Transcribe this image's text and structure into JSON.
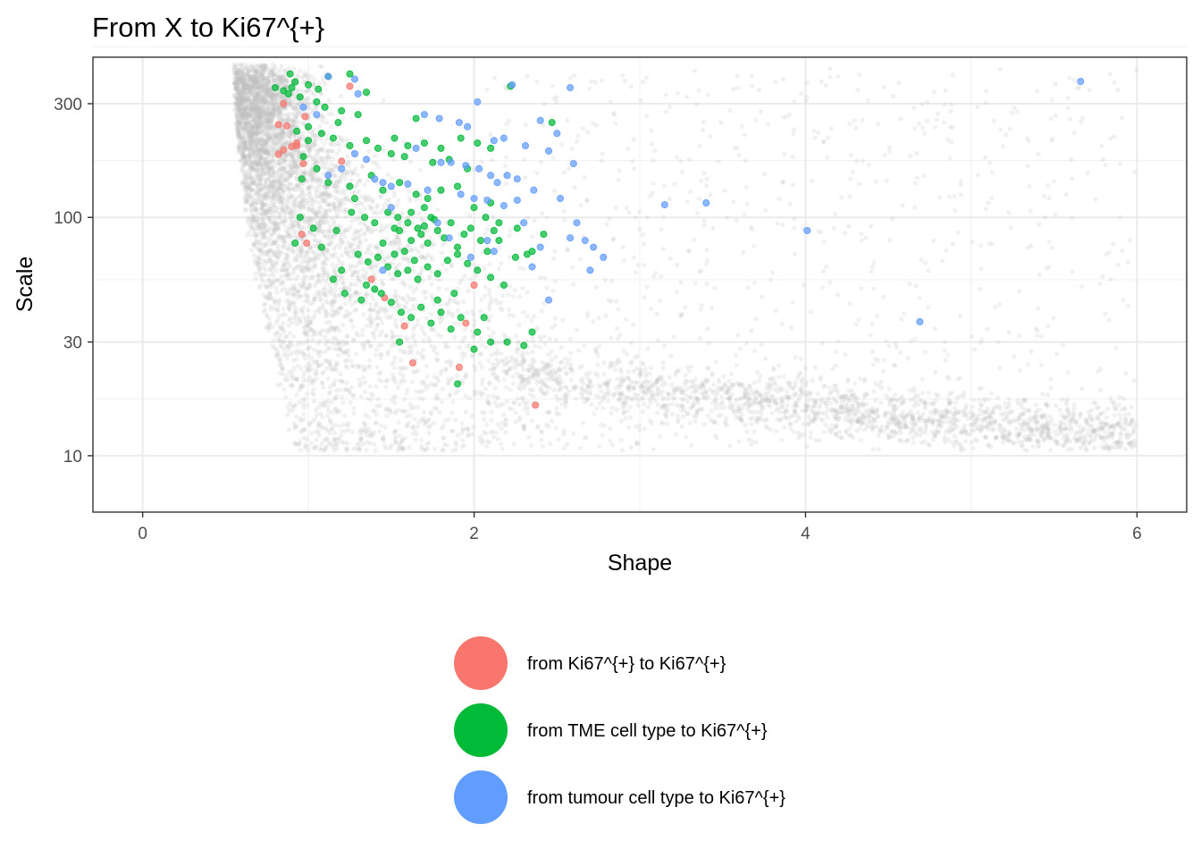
{
  "chart_data": {
    "type": "scatter",
    "title": "From X to  Ki67^{+}",
    "xlabel": "Shape",
    "ylabel": "Scale",
    "xlim": [
      -0.3,
      6.3
    ],
    "ylim": [
      5.8,
      470
    ],
    "yscale": "log",
    "x_ticks": [
      0,
      2,
      4,
      6
    ],
    "x_tick_labels": [
      "0",
      "2",
      "4",
      "6"
    ],
    "y_ticks": [
      10,
      30,
      100,
      300
    ],
    "y_tick_labels": [
      "10",
      "30",
      "100",
      "300"
    ],
    "grid": true,
    "legend_position": "bottom",
    "background_color": "#BEBEBE",
    "series": [
      {
        "name": "from Ki67^{+} to Ki67^{+}",
        "color": "#F8766D",
        "points": [
          [
            0.85,
            300
          ],
          [
            0.98,
            265
          ],
          [
            0.82,
            245
          ],
          [
            0.87,
            242
          ],
          [
            0.93,
            200
          ],
          [
            0.9,
            198
          ],
          [
            0.85,
            192
          ],
          [
            0.82,
            184
          ],
          [
            0.97,
            168
          ],
          [
            1.25,
            355
          ],
          [
            0.96,
            85
          ],
          [
            1.2,
            172
          ],
          [
            0.99,
            78
          ],
          [
            1.38,
            55
          ],
          [
            1.46,
            46
          ],
          [
            1.58,
            35
          ],
          [
            1.63,
            24.5
          ],
          [
            1.95,
            36
          ],
          [
            1.91,
            23.5
          ],
          [
            2.37,
            16.3
          ],
          [
            2.0,
            52
          ],
          [
            0.93,
            205
          ]
        ]
      },
      {
        "name": "from TME cell type to Ki67^{+}",
        "color": "#00BA38",
        "points": [
          [
            0.85,
            340
          ],
          [
            0.89,
            400
          ],
          [
            0.92,
            370
          ],
          [
            1.0,
            360
          ],
          [
            1.06,
            345
          ],
          [
            1.12,
            390
          ],
          [
            1.25,
            400
          ],
          [
            1.35,
            335
          ],
          [
            0.8,
            350
          ],
          [
            0.88,
            330
          ],
          [
            0.95,
            320
          ],
          [
            1.05,
            305
          ],
          [
            1.1,
            290
          ],
          [
            1.2,
            280
          ],
          [
            1.3,
            270
          ],
          [
            1.18,
            250
          ],
          [
            1.0,
            240
          ],
          [
            0.93,
            230
          ],
          [
            1.08,
            225
          ],
          [
            1.15,
            215
          ],
          [
            1.25,
            200
          ],
          [
            1.35,
            210
          ],
          [
            1.42,
            195
          ],
          [
            1.52,
            215
          ],
          [
            1.6,
            200
          ],
          [
            1.7,
            205
          ],
          [
            1.8,
            195
          ],
          [
            1.65,
            260
          ],
          [
            1.92,
            215
          ],
          [
            2.02,
            205
          ],
          [
            2.1,
            195
          ],
          [
            1.5,
            185
          ],
          [
            1.58,
            180
          ],
          [
            1.75,
            170
          ],
          [
            1.85,
            175
          ],
          [
            1.96,
            160
          ],
          [
            1.05,
            160
          ],
          [
            0.96,
            145
          ],
          [
            1.12,
            140
          ],
          [
            1.25,
            135
          ],
          [
            1.38,
            150
          ],
          [
            1.45,
            130
          ],
          [
            1.55,
            140
          ],
          [
            1.65,
            125
          ],
          [
            1.72,
            120
          ],
          [
            1.8,
            130
          ],
          [
            1.9,
            135
          ],
          [
            2.0,
            110
          ],
          [
            2.1,
            115
          ],
          [
            1.28,
            120
          ],
          [
            1.34,
            100
          ],
          [
            1.4,
            95
          ],
          [
            1.48,
            105
          ],
          [
            1.52,
            90
          ],
          [
            1.55,
            88
          ],
          [
            1.6,
            95
          ],
          [
            1.62,
            80
          ],
          [
            1.68,
            85
          ],
          [
            1.7,
            92
          ],
          [
            1.72,
            78
          ],
          [
            1.74,
            100
          ],
          [
            1.78,
            88
          ],
          [
            1.82,
            82
          ],
          [
            1.86,
            95
          ],
          [
            1.9,
            75
          ],
          [
            1.94,
            85
          ],
          [
            1.98,
            90
          ],
          [
            2.04,
            80
          ],
          [
            2.08,
            72
          ],
          [
            2.12,
            88
          ],
          [
            1.3,
            70
          ],
          [
            1.36,
            65
          ],
          [
            1.42,
            68
          ],
          [
            1.48,
            62
          ],
          [
            1.54,
            58
          ],
          [
            1.6,
            60
          ],
          [
            1.66,
            55
          ],
          [
            1.72,
            62
          ],
          [
            1.78,
            58
          ],
          [
            1.84,
            66
          ],
          [
            1.9,
            70
          ],
          [
            1.96,
            64
          ],
          [
            2.02,
            60
          ],
          [
            2.1,
            56
          ],
          [
            2.18,
            52
          ],
          [
            1.2,
            60
          ],
          [
            1.15,
            55
          ],
          [
            1.22,
            48
          ],
          [
            1.32,
            45
          ],
          [
            1.4,
            50
          ],
          [
            1.5,
            44
          ],
          [
            1.56,
            40
          ],
          [
            1.62,
            38
          ],
          [
            1.68,
            42
          ],
          [
            1.74,
            36
          ],
          [
            1.8,
            40
          ],
          [
            1.86,
            34
          ],
          [
            1.92,
            38
          ],
          [
            2.02,
            33
          ],
          [
            2.1,
            30
          ],
          [
            2.2,
            30
          ],
          [
            2.3,
            29
          ],
          [
            2.35,
            33
          ],
          [
            2.0,
            28
          ],
          [
            1.9,
            20
          ],
          [
            1.55,
            30
          ],
          [
            1.78,
            45
          ],
          [
            1.88,
            48
          ],
          [
            2.06,
            38
          ],
          [
            1.35,
            52
          ],
          [
            1.45,
            78
          ],
          [
            1.58,
            72
          ],
          [
            2.25,
            68
          ],
          [
            2.35,
            72
          ],
          [
            2.42,
            85
          ],
          [
            2.22,
            355
          ],
          [
            2.47,
            250
          ],
          [
            2.32,
            70
          ],
          [
            0.92,
            78
          ],
          [
            0.95,
            100
          ],
          [
            1.03,
            90
          ],
          [
            1.26,
            105
          ],
          [
            1.17,
            88
          ],
          [
            1.08,
            75
          ],
          [
            0.9,
            350
          ],
          [
            1.0,
            210
          ],
          [
            0.97,
            180
          ],
          [
            1.7,
            110
          ],
          [
            1.76,
            98
          ],
          [
            1.62,
            105
          ],
          [
            1.66,
            90
          ],
          [
            1.54,
            100
          ],
          [
            2.07,
            100
          ],
          [
            2.15,
            95
          ],
          [
            1.52,
            70
          ],
          [
            1.44,
            48
          ],
          [
            1.64,
            66
          ],
          [
            2.26,
            90
          ],
          [
            2.15,
            80
          ]
        ]
      },
      {
        "name": "from tumour cell type to Ki67^{+}",
        "color": "#619CFF",
        "points": [
          [
            1.12,
            390
          ],
          [
            1.28,
            380
          ],
          [
            1.3,
            330
          ],
          [
            0.97,
            290
          ],
          [
            1.05,
            270
          ],
          [
            2.02,
            305
          ],
          [
            2.58,
            350
          ],
          [
            2.23,
            360
          ],
          [
            2.4,
            255
          ],
          [
            2.5,
            225
          ],
          [
            1.7,
            270
          ],
          [
            1.79,
            260
          ],
          [
            1.91,
            250
          ],
          [
            1.96,
            240
          ],
          [
            2.12,
            210
          ],
          [
            2.18,
            215
          ],
          [
            2.31,
            200
          ],
          [
            2.45,
            190
          ],
          [
            2.6,
            168
          ],
          [
            1.65,
            195
          ],
          [
            1.8,
            170
          ],
          [
            1.86,
            170
          ],
          [
            1.95,
            165
          ],
          [
            2.03,
            160
          ],
          [
            2.1,
            150
          ],
          [
            2.14,
            140
          ],
          [
            2.2,
            150
          ],
          [
            2.26,
            145
          ],
          [
            2.36,
            130
          ],
          [
            2.52,
            120
          ],
          [
            1.28,
            185
          ],
          [
            1.35,
            175
          ],
          [
            1.2,
            160
          ],
          [
            1.12,
            150
          ],
          [
            1.4,
            145
          ],
          [
            1.45,
            140
          ],
          [
            1.5,
            135
          ],
          [
            1.6,
            138
          ],
          [
            1.72,
            130
          ],
          [
            1.92,
            125
          ],
          [
            2.0,
            120
          ],
          [
            2.08,
            118
          ],
          [
            2.18,
            112
          ],
          [
            2.26,
            118
          ],
          [
            3.15,
            113
          ],
          [
            3.4,
            115
          ],
          [
            4.01,
            88
          ],
          [
            5.66,
            372
          ],
          [
            4.69,
            36.5
          ],
          [
            2.58,
            82
          ],
          [
            2.62,
            95
          ],
          [
            2.67,
            80
          ],
          [
            2.72,
            75
          ],
          [
            2.78,
            68
          ],
          [
            2.7,
            60
          ],
          [
            2.35,
            62
          ],
          [
            2.45,
            45
          ],
          [
            2.08,
            80
          ],
          [
            2.12,
            72
          ],
          [
            1.85,
            82
          ],
          [
            1.5,
            110
          ],
          [
            1.78,
            95
          ],
          [
            1.98,
            68
          ],
          [
            2.3,
            95
          ],
          [
            2.4,
            75
          ],
          [
            1.45,
            60
          ]
        ]
      }
    ]
  }
}
